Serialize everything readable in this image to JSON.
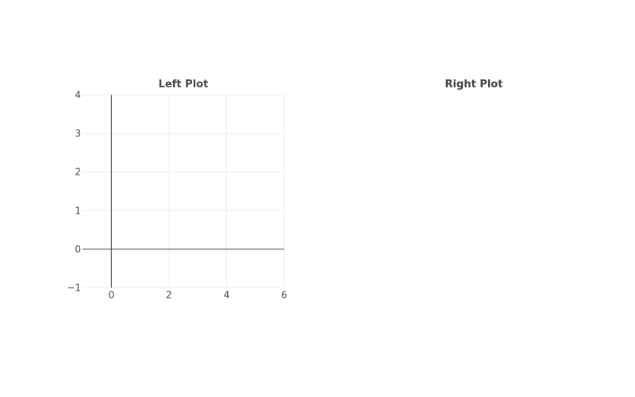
{
  "chart_data": [
    {
      "type": "line",
      "title": "Left Plot",
      "xlabel": "",
      "ylabel": "",
      "xlim": [
        -1,
        6
      ],
      "ylim": [
        -1,
        4
      ],
      "x_ticks": [
        0,
        2,
        4,
        6
      ],
      "y_ticks": [
        -1,
        0,
        1,
        2,
        3,
        4
      ],
      "x_tick_labels": [
        "0",
        "2",
        "4",
        "6"
      ],
      "y_tick_labels": [
        "−1",
        "0",
        "1",
        "2",
        "3",
        "4"
      ],
      "grid": true,
      "zero_lines": true,
      "series": []
    },
    {
      "type": "line",
      "title": "Right Plot",
      "xlabel": "",
      "ylabel": "",
      "grid": false,
      "axes_visible": false,
      "series": []
    }
  ],
  "colors": {
    "background": "#ffffff",
    "grid": "#eeeeee",
    "zero_line": "#444444",
    "text": "#444444"
  }
}
